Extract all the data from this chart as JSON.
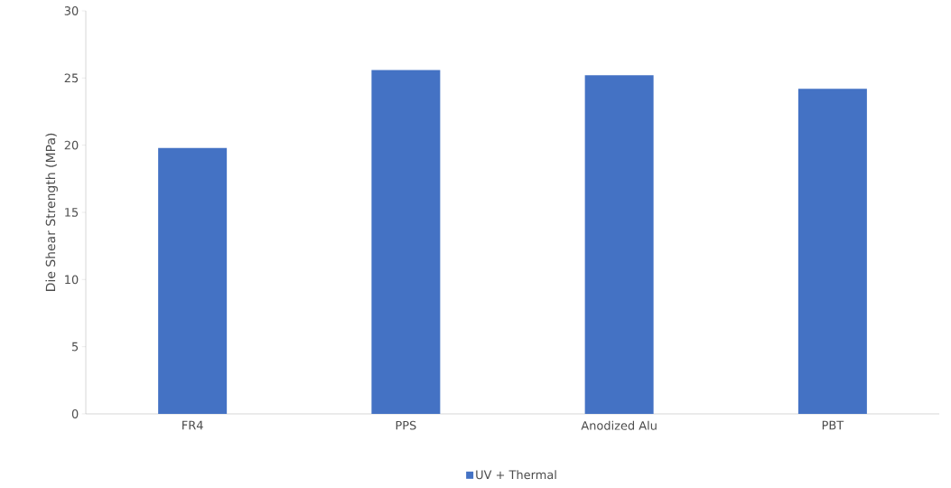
{
  "chart_data": {
    "type": "bar",
    "ylabel": "Die Shear Strength (MPa)",
    "categories": [
      "FR4",
      "PPS",
      "Anodized Alu",
      "PBT"
    ],
    "series": [
      {
        "name": "UV + Thermal",
        "color": "#4472c4",
        "values": [
          19.8,
          25.6,
          25.2,
          24.2
        ]
      }
    ],
    "ylim": [
      0,
      30
    ],
    "yticks": [
      0,
      5,
      10,
      15,
      20,
      25,
      30
    ],
    "grid": false,
    "legend": "bottom"
  }
}
